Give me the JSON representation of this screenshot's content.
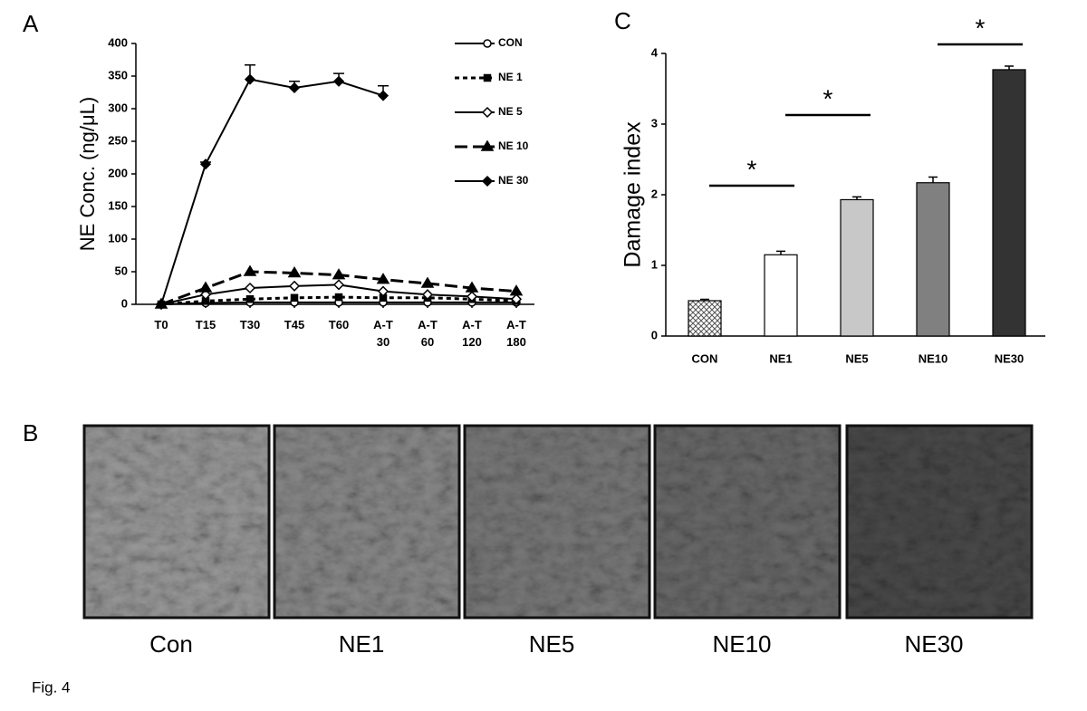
{
  "chart_data": [
    {
      "type": "line",
      "panel": "A",
      "ylabel": "NE Conc. (ng/μL)",
      "categories": [
        "T0",
        "T15",
        "T30",
        "T45",
        "T60",
        "A-T 30",
        "A-T 60",
        "A-T 120",
        "A-T 180"
      ],
      "ylim": [
        0,
        400
      ],
      "yticks": [
        0,
        50,
        100,
        150,
        200,
        250,
        300,
        350,
        400
      ],
      "series": [
        {
          "name": "CON",
          "color": "#000000",
          "dash": "solid",
          "marker": "open-circle",
          "values": [
            0,
            2,
            3,
            3,
            3,
            3,
            3,
            3,
            3
          ]
        },
        {
          "name": "NE 1",
          "color": "#000000",
          "dash": "dotted",
          "marker": "square",
          "values": [
            0,
            5,
            8,
            10,
            11,
            10,
            10,
            8,
            5
          ]
        },
        {
          "name": "NE 5",
          "color": "#000000",
          "dash": "solid",
          "marker": "open-diamond",
          "values": [
            0,
            15,
            25,
            28,
            30,
            20,
            15,
            12,
            8
          ]
        },
        {
          "name": "NE 10",
          "color": "#000000",
          "dash": "dashed",
          "marker": "triangle",
          "values": [
            0,
            25,
            50,
            48,
            45,
            38,
            32,
            25,
            20
          ]
        },
        {
          "name": "NE 30",
          "color": "#000000",
          "dash": "solid",
          "marker": "diamond",
          "values": [
            0,
            215,
            345,
            332,
            342,
            320,
            null,
            null,
            null
          ],
          "errors": [
            0,
            3,
            22,
            10,
            12,
            15,
            null,
            null,
            null
          ]
        }
      ]
    },
    {
      "type": "bar",
      "panel": "C",
      "ylabel": "Damage index",
      "categories": [
        "CON",
        "NE1",
        "NE5",
        "NE10",
        "NE30"
      ],
      "values": [
        0.5,
        1.15,
        1.93,
        2.17,
        3.77
      ],
      "errors": [
        0.02,
        0.05,
        0.04,
        0.08,
        0.05
      ],
      "colors": [
        "#bbbbbb",
        "#ffffff",
        "#c8c8c8",
        "#808080",
        "#333333"
      ],
      "hatched": [
        "CON"
      ],
      "ylim": [
        0,
        4
      ],
      "yticks": [
        0,
        1,
        2,
        3,
        4
      ],
      "significance": [
        {
          "from": "CON",
          "to": "NE1",
          "label": "*"
        },
        {
          "from": "NE1",
          "to": "NE5",
          "label": "*"
        },
        {
          "from": "NE10",
          "to": "NE30",
          "label": "*"
        }
      ]
    }
  ],
  "micrographs": {
    "panel": "B",
    "captions": [
      "Con",
      "NE1",
      "NE5",
      "NE10",
      "NE30"
    ]
  },
  "figure_label": "Fig. 4"
}
